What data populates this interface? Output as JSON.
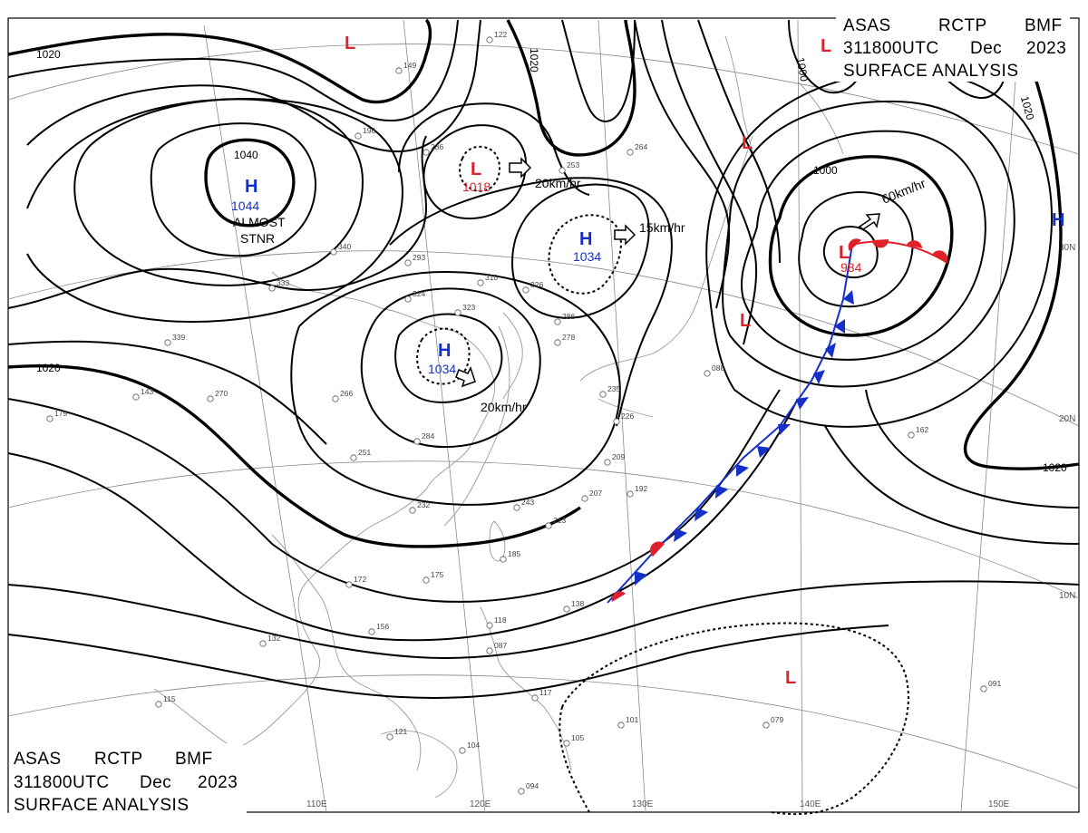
{
  "header_top": {
    "line1": [
      "ASAS",
      "RCTP",
      "BMF"
    ],
    "line2": [
      "311800UTC",
      "Dec",
      "2023"
    ],
    "line3": "SURFACE  ANALYSIS"
  },
  "header_bottom": {
    "line1": [
      "ASAS",
      "RCTP",
      "BMF"
    ],
    "line2": [
      "311800UTC",
      "Dec",
      "2023"
    ],
    "line3": "SURFACE  ANALYSIS"
  },
  "longitude_labels": [
    "110E",
    "120E",
    "130E",
    "140E",
    "150E"
  ],
  "latitude_labels": [
    "30N",
    "20N",
    "10N"
  ],
  "isobar_labels": [
    "1020",
    "1020",
    "1020",
    "1040",
    "1000",
    "1000",
    "1020",
    "1020"
  ],
  "pressure_systems": [
    {
      "type": "H",
      "value": "1044",
      "note": [
        "ALMOST",
        "STNR"
      ],
      "color": "#1530c8"
    },
    {
      "type": "L",
      "value": "1018",
      "color": "#e0202a"
    },
    {
      "type": "H",
      "value": "1034",
      "color": "#1530c8"
    },
    {
      "type": "H",
      "value": "1034",
      "color": "#1530c8"
    },
    {
      "type": "L",
      "value": "984",
      "color": "#e0202a"
    },
    {
      "type": "L",
      "value": "",
      "color": "#e0202a"
    },
    {
      "type": "L",
      "value": "",
      "color": "#e0202a"
    },
    {
      "type": "L",
      "value": "",
      "color": "#e0202a"
    },
    {
      "type": "L",
      "value": "",
      "color": "#e0202a"
    },
    {
      "type": "L",
      "value": "",
      "color": "#e0202a"
    },
    {
      "type": "H",
      "value": "",
      "color": "#1530c8"
    }
  ],
  "motion_vectors": [
    "20km/hr",
    "15km/hr",
    "20km/hr",
    "60km/hr"
  ],
  "front_colors": {
    "cold": "#1530c8",
    "warm": "#e0202a"
  },
  "stations": [
    "149",
    "122",
    "196",
    "236",
    "264",
    "253",
    "340",
    "333",
    "339",
    "324",
    "323",
    "310",
    "326",
    "293",
    "266",
    "270",
    "284",
    "251",
    "232",
    "243",
    "213",
    "185",
    "175",
    "172",
    "156",
    "132",
    "115",
    "121",
    "104",
    "094",
    "105",
    "117",
    "118",
    "087",
    "138",
    "101",
    "079",
    "091",
    "192",
    "209",
    "207",
    "226",
    "235",
    "278",
    "286",
    "088",
    "162",
    "179",
    "143"
  ]
}
